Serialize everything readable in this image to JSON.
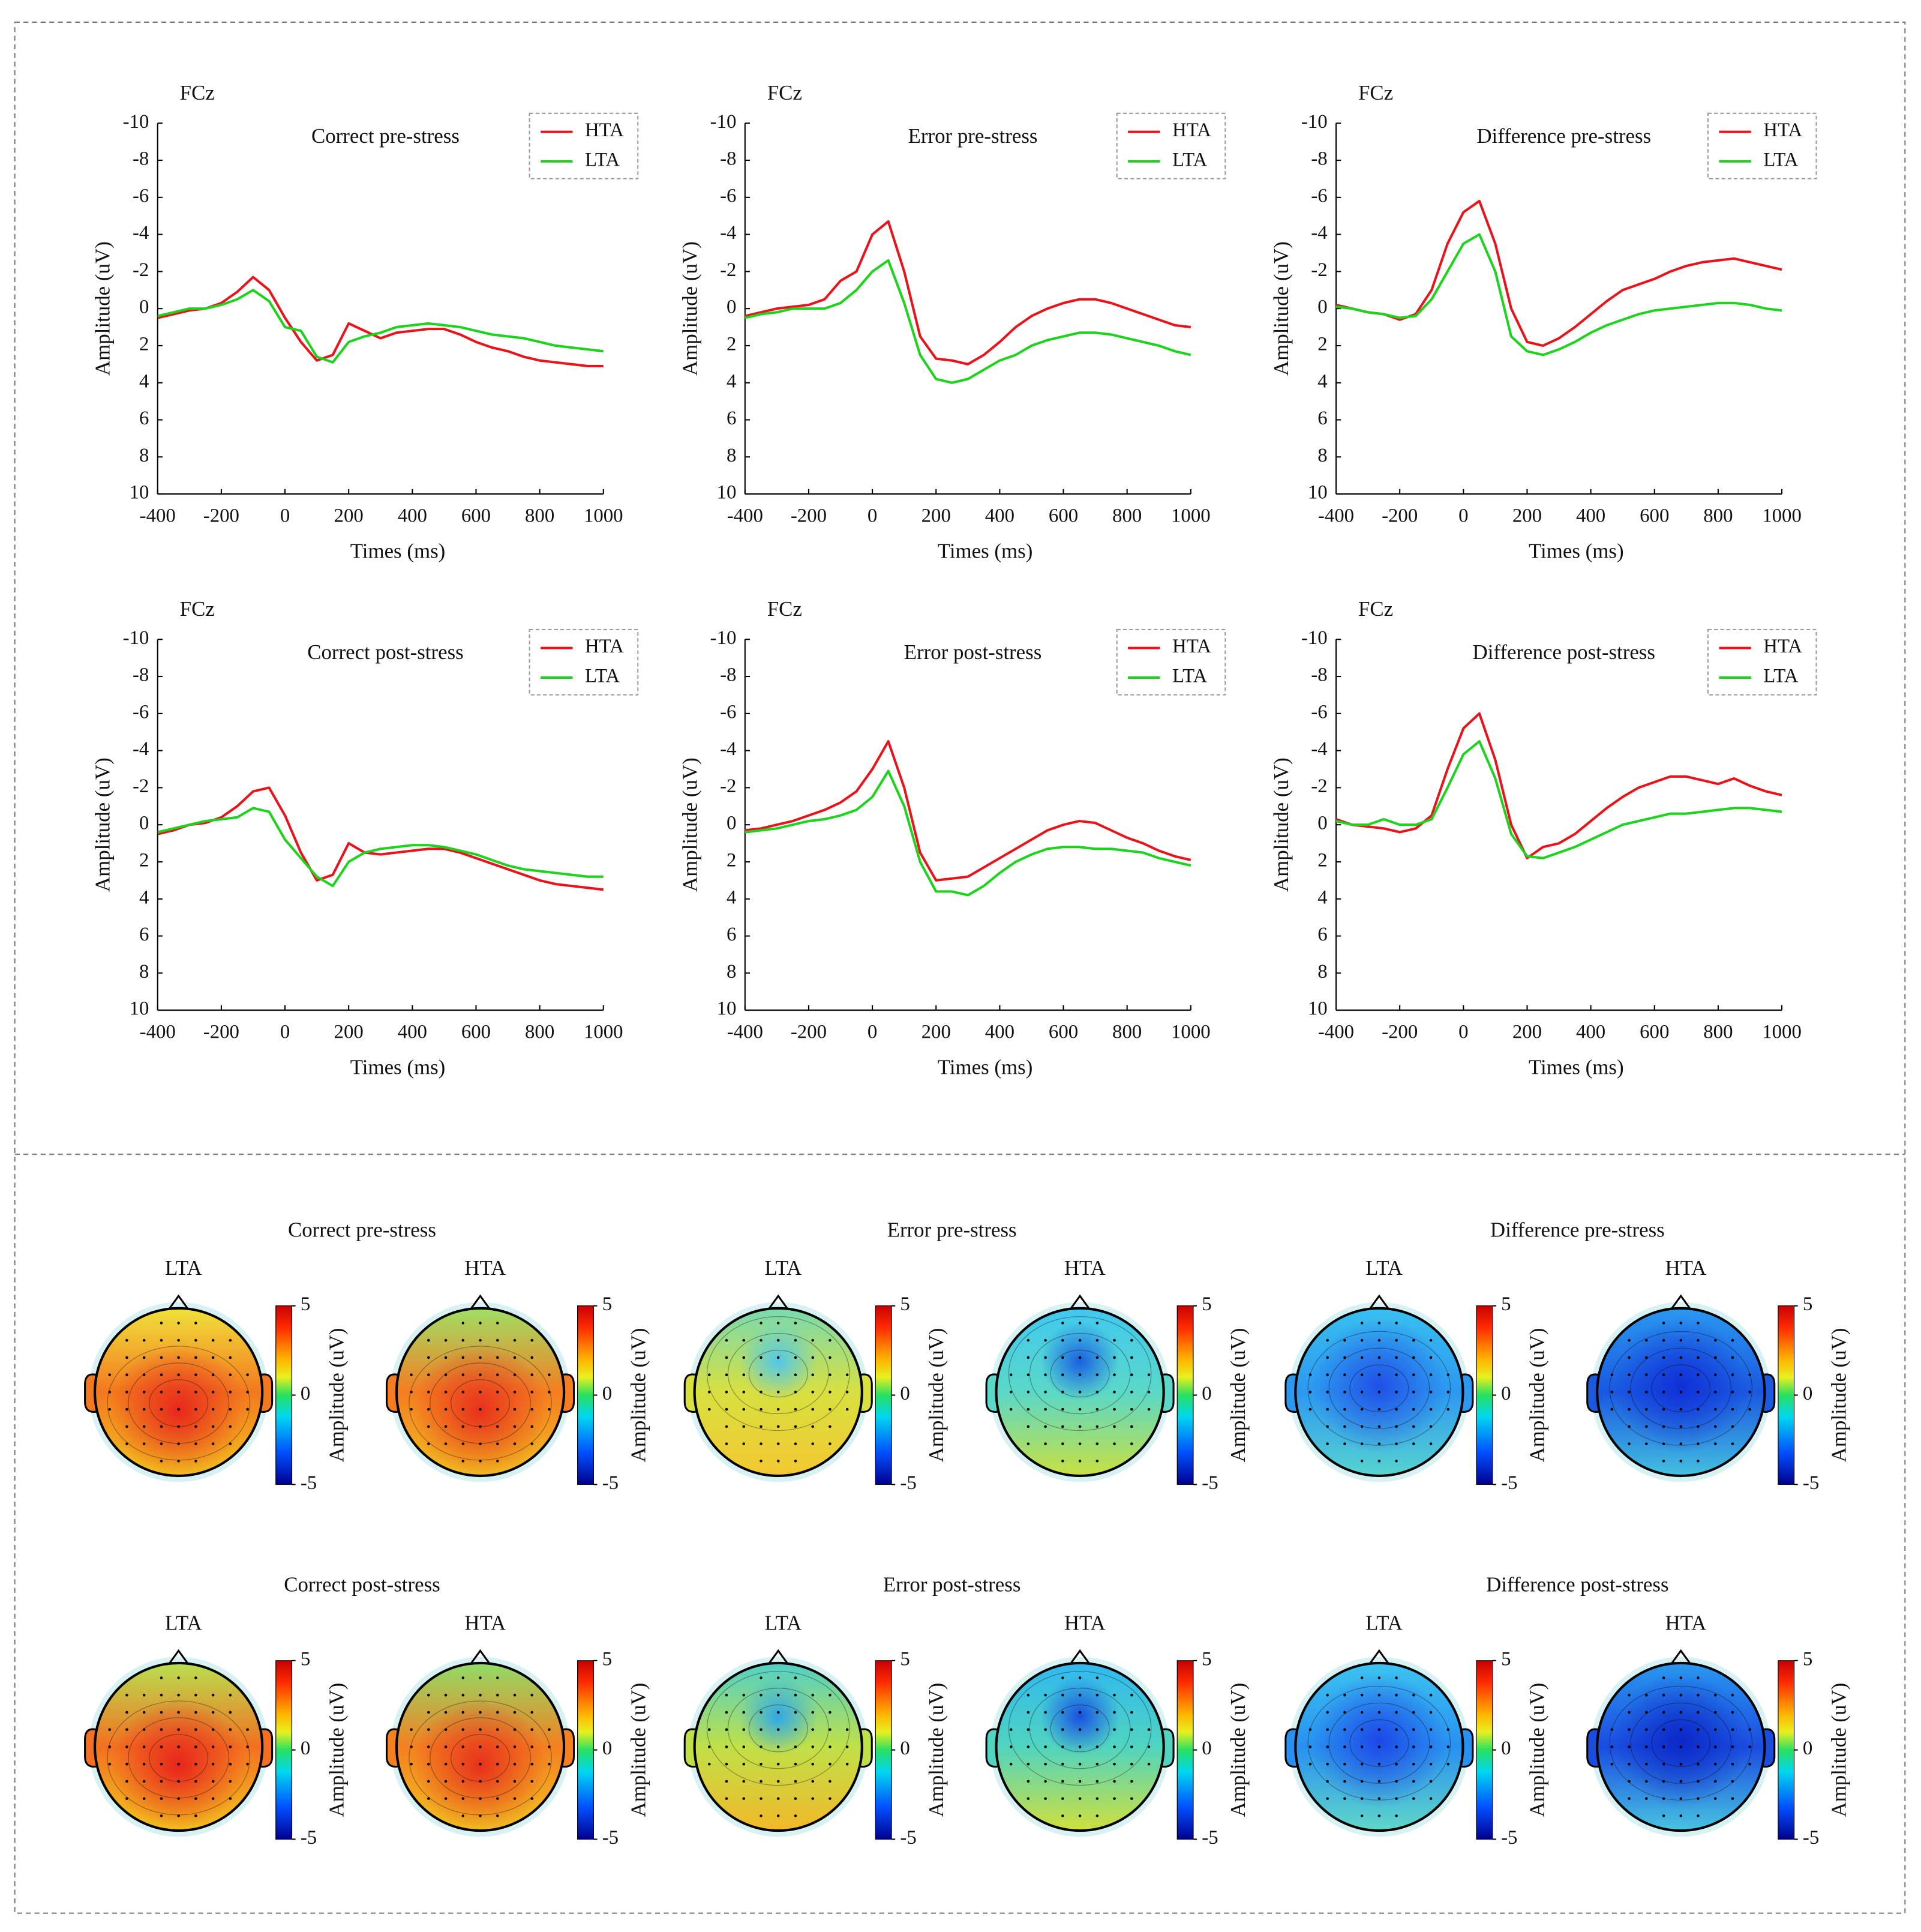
{
  "chart_data": [
    {
      "type": "line",
      "channel": "FCz",
      "title": "Correct pre-stress",
      "x_label": "Times (ms)",
      "y_label": "Amplitude (uV)",
      "xlim": [
        -400,
        1000
      ],
      "xticks": [
        -400,
        -200,
        0,
        200,
        400,
        600,
        800,
        1000
      ],
      "ylim": [
        -10,
        10
      ],
      "yticks": [
        -10,
        -8,
        -6,
        -4,
        -2,
        0,
        2,
        4,
        6,
        8,
        10
      ],
      "y_inverted": true,
      "legend": "upper right",
      "x": [
        -400,
        -350,
        -300,
        -250,
        -200,
        -150,
        -100,
        -50,
        0,
        50,
        100,
        150,
        200,
        250,
        300,
        350,
        400,
        450,
        500,
        550,
        600,
        650,
        700,
        750,
        800,
        850,
        900,
        950,
        1000
      ],
      "series": [
        {
          "name": "HTA",
          "color": "#e8141c",
          "values": [
            0.5,
            0.3,
            0.1,
            0,
            -0.3,
            -0.9,
            -1.7,
            -1.0,
            0.5,
            1.8,
            2.8,
            2.5,
            0.8,
            1.2,
            1.6,
            1.3,
            1.2,
            1.1,
            1.1,
            1.4,
            1.8,
            2.1,
            2.3,
            2.6,
            2.8,
            2.9,
            3.0,
            3.1,
            3.1
          ]
        },
        {
          "name": "LTA",
          "color": "#1ed21e",
          "values": [
            0.4,
            0.2,
            0,
            0,
            -0.2,
            -0.5,
            -1.0,
            -0.4,
            1.0,
            1.2,
            2.6,
            2.9,
            1.8,
            1.5,
            1.3,
            1.0,
            0.9,
            0.8,
            0.9,
            1.0,
            1.2,
            1.4,
            1.5,
            1.6,
            1.8,
            2.0,
            2.1,
            2.2,
            2.3
          ]
        }
      ]
    },
    {
      "type": "line",
      "channel": "FCz",
      "title": "Error pre-stress",
      "x_label": "Times (ms)",
      "y_label": "Amplitude (uV)",
      "xlim": [
        -400,
        1000
      ],
      "xticks": [
        -400,
        -200,
        0,
        200,
        400,
        600,
        800,
        1000
      ],
      "ylim": [
        -10,
        10
      ],
      "yticks": [
        -10,
        -8,
        -6,
        -4,
        -2,
        0,
        2,
        4,
        6,
        8,
        10
      ],
      "y_inverted": true,
      "legend": "upper right",
      "x": [
        -400,
        -350,
        -300,
        -250,
        -200,
        -150,
        -100,
        -50,
        0,
        50,
        100,
        150,
        200,
        250,
        300,
        350,
        400,
        450,
        500,
        550,
        600,
        650,
        700,
        750,
        800,
        850,
        900,
        950,
        1000
      ],
      "series": [
        {
          "name": "HTA",
          "color": "#e8141c",
          "values": [
            0.4,
            0.2,
            0,
            -0.1,
            -0.2,
            -0.5,
            -1.5,
            -2.0,
            -4.0,
            -4.7,
            -2.0,
            1.5,
            2.7,
            2.8,
            3.0,
            2.5,
            1.8,
            1.0,
            0.4,
            0,
            -0.3,
            -0.5,
            -0.5,
            -0.3,
            0,
            0.3,
            0.6,
            0.9,
            1.0
          ]
        },
        {
          "name": "LTA",
          "color": "#1ed21e",
          "values": [
            0.5,
            0.3,
            0.2,
            0,
            0,
            0,
            -0.3,
            -1.0,
            -2.0,
            -2.6,
            -0.3,
            2.5,
            3.8,
            4.0,
            3.8,
            3.3,
            2.8,
            2.5,
            2.0,
            1.7,
            1.5,
            1.3,
            1.3,
            1.4,
            1.6,
            1.8,
            2.0,
            2.3,
            2.5
          ]
        }
      ]
    },
    {
      "type": "line",
      "channel": "FCz",
      "title": "Difference pre-stress",
      "x_label": "Times (ms)",
      "y_label": "Amplitude (uV)",
      "xlim": [
        -400,
        1000
      ],
      "xticks": [
        -400,
        -200,
        0,
        200,
        400,
        600,
        800,
        1000
      ],
      "ylim": [
        -10,
        10
      ],
      "yticks": [
        -10,
        -8,
        -6,
        -4,
        -2,
        0,
        2,
        4,
        6,
        8,
        10
      ],
      "y_inverted": true,
      "legend": "upper right",
      "x": [
        -400,
        -350,
        -300,
        -250,
        -200,
        -150,
        -100,
        -50,
        0,
        50,
        100,
        150,
        200,
        250,
        300,
        350,
        400,
        450,
        500,
        550,
        600,
        650,
        700,
        750,
        800,
        850,
        900,
        950,
        1000
      ],
      "series": [
        {
          "name": "HTA",
          "color": "#e8141c",
          "values": [
            -0.2,
            0,
            0.2,
            0.3,
            0.6,
            0.3,
            -1.0,
            -3.5,
            -5.2,
            -5.8,
            -3.5,
            0,
            1.8,
            2.0,
            1.6,
            1.0,
            0.3,
            -0.4,
            -1.0,
            -1.3,
            -1.6,
            -2.0,
            -2.3,
            -2.5,
            -2.6,
            -2.7,
            -2.5,
            -2.3,
            -2.1
          ]
        },
        {
          "name": "LTA",
          "color": "#1ed21e",
          "values": [
            -0.1,
            0,
            0.2,
            0.3,
            0.5,
            0.4,
            -0.5,
            -2.0,
            -3.5,
            -4.0,
            -2.0,
            1.5,
            2.3,
            2.5,
            2.2,
            1.8,
            1.3,
            0.9,
            0.6,
            0.3,
            0.1,
            0,
            -0.1,
            -0.2,
            -0.3,
            -0.3,
            -0.2,
            0,
            0.1
          ]
        }
      ]
    },
    {
      "type": "line",
      "channel": "FCz",
      "title": "Correct post-stress",
      "x_label": "Times (ms)",
      "y_label": "Amplitude (uV)",
      "xlim": [
        -400,
        1000
      ],
      "xticks": [
        -400,
        -200,
        0,
        200,
        400,
        600,
        800,
        1000
      ],
      "ylim": [
        -10,
        10
      ],
      "yticks": [
        -10,
        -8,
        -6,
        -4,
        -2,
        0,
        2,
        4,
        6,
        8,
        10
      ],
      "y_inverted": true,
      "legend": "upper right",
      "x": [
        -400,
        -350,
        -300,
        -250,
        -200,
        -150,
        -100,
        -50,
        0,
        50,
        100,
        150,
        200,
        250,
        300,
        350,
        400,
        450,
        500,
        550,
        600,
        650,
        700,
        750,
        800,
        850,
        900,
        950,
        1000
      ],
      "series": [
        {
          "name": "HTA",
          "color": "#e8141c",
          "values": [
            0.5,
            0.3,
            0,
            -0.1,
            -0.4,
            -1.0,
            -1.8,
            -2.0,
            -0.5,
            1.5,
            3.0,
            2.7,
            1.0,
            1.5,
            1.6,
            1.5,
            1.4,
            1.3,
            1.3,
            1.5,
            1.8,
            2.1,
            2.4,
            2.7,
            3.0,
            3.2,
            3.3,
            3.4,
            3.5
          ]
        },
        {
          "name": "LTA",
          "color": "#1ed21e",
          "values": [
            0.4,
            0.2,
            0,
            -0.2,
            -0.3,
            -0.4,
            -0.9,
            -0.7,
            0.8,
            1.8,
            2.8,
            3.3,
            2.0,
            1.5,
            1.3,
            1.2,
            1.1,
            1.1,
            1.2,
            1.4,
            1.6,
            1.9,
            2.2,
            2.4,
            2.5,
            2.6,
            2.7,
            2.8,
            2.8
          ]
        }
      ]
    },
    {
      "type": "line",
      "channel": "FCz",
      "title": "Error post-stress",
      "x_label": "Times (ms)",
      "y_label": "Amplitude (uV)",
      "xlim": [
        -400,
        1000
      ],
      "xticks": [
        -400,
        -200,
        0,
        200,
        400,
        600,
        800,
        1000
      ],
      "ylim": [
        -10,
        10
      ],
      "yticks": [
        -10,
        -8,
        -6,
        -4,
        -2,
        0,
        2,
        4,
        6,
        8,
        10
      ],
      "y_inverted": true,
      "legend": "upper right",
      "x": [
        -400,
        -350,
        -300,
        -250,
        -200,
        -150,
        -100,
        -50,
        0,
        50,
        100,
        150,
        200,
        250,
        300,
        350,
        400,
        450,
        500,
        550,
        600,
        650,
        700,
        750,
        800,
        850,
        900,
        950,
        1000
      ],
      "series": [
        {
          "name": "HTA",
          "color": "#e8141c",
          "values": [
            0.3,
            0.2,
            0,
            -0.2,
            -0.5,
            -0.8,
            -1.2,
            -1.8,
            -3.0,
            -4.5,
            -2.0,
            1.5,
            3.0,
            2.9,
            2.8,
            2.3,
            1.8,
            1.3,
            0.8,
            0.3,
            0,
            -0.2,
            -0.1,
            0.3,
            0.7,
            1.0,
            1.4,
            1.7,
            1.9
          ]
        },
        {
          "name": "LTA",
          "color": "#1ed21e",
          "values": [
            0.4,
            0.3,
            0.2,
            0,
            -0.2,
            -0.3,
            -0.5,
            -0.8,
            -1.5,
            -2.9,
            -1.0,
            2.0,
            3.6,
            3.6,
            3.8,
            3.3,
            2.6,
            2.0,
            1.6,
            1.3,
            1.2,
            1.2,
            1.3,
            1.3,
            1.4,
            1.5,
            1.8,
            2.0,
            2.2
          ]
        }
      ]
    },
    {
      "type": "line",
      "channel": "FCz",
      "title": "Difference post-stress",
      "x_label": "Times (ms)",
      "y_label": "Amplitude (uV)",
      "xlim": [
        -400,
        1000
      ],
      "xticks": [
        -400,
        -200,
        0,
        200,
        400,
        600,
        800,
        1000
      ],
      "ylim": [
        -10,
        10
      ],
      "yticks": [
        -10,
        -8,
        -6,
        -4,
        -2,
        0,
        2,
        4,
        6,
        8,
        10
      ],
      "y_inverted": true,
      "legend": "upper right",
      "x": [
        -400,
        -350,
        -300,
        -250,
        -200,
        -150,
        -100,
        -50,
        0,
        50,
        100,
        150,
        200,
        250,
        300,
        350,
        400,
        450,
        500,
        550,
        600,
        650,
        700,
        750,
        800,
        850,
        900,
        950,
        1000
      ],
      "series": [
        {
          "name": "HTA",
          "color": "#e8141c",
          "values": [
            -0.3,
            0,
            0.1,
            0.2,
            0.4,
            0.2,
            -0.5,
            -3.0,
            -5.2,
            -6.0,
            -3.5,
            0,
            1.8,
            1.2,
            1.0,
            0.5,
            -0.2,
            -0.9,
            -1.5,
            -2.0,
            -2.3,
            -2.6,
            -2.6,
            -2.4,
            -2.2,
            -2.5,
            -2.1,
            -1.8,
            -1.6
          ]
        },
        {
          "name": "LTA",
          "color": "#1ed21e",
          "values": [
            -0.2,
            0,
            0,
            -0.3,
            0,
            0,
            -0.3,
            -2.0,
            -3.8,
            -4.5,
            -2.5,
            0.5,
            1.7,
            1.8,
            1.5,
            1.2,
            0.8,
            0.4,
            0,
            -0.2,
            -0.4,
            -0.6,
            -0.6,
            -0.7,
            -0.8,
            -0.9,
            -0.9,
            -0.8,
            -0.7
          ]
        }
      ]
    }
  ],
  "topomaps": {
    "colorbar_label": "Amplitude (uV)",
    "colorbar_lim": [
      -5,
      5
    ],
    "colorbar_ticks": [
      5,
      0,
      -5
    ],
    "panels": [
      {
        "title": "Correct pre-stress",
        "maps": [
          {
            "label": "LTA",
            "colors": [
              "#f0e23a",
              "#f3781e",
              "#f2c41e",
              "#e8261c"
            ]
          },
          {
            "label": "HTA",
            "colors": [
              "#9ee065",
              "#f57d20",
              "#f0c020",
              "#e8301c"
            ]
          }
        ]
      },
      {
        "title": "Error pre-stress",
        "maps": [
          {
            "label": "LTA",
            "colors": [
              "#78dab0",
              "#d8e040",
              "#f3c830",
              "#52c8e8"
            ]
          },
          {
            "label": "HTA",
            "colors": [
              "#40c8f0",
              "#5ad8c8",
              "#c8e040",
              "#1a60e0"
            ]
          }
        ]
      },
      {
        "title": "Difference pre-stress",
        "maps": [
          {
            "label": "LTA",
            "colors": [
              "#38c0f0",
              "#2c98f0",
              "#58d4d0",
              "#2050e8"
            ]
          },
          {
            "label": "HTA",
            "colors": [
              "#2a98f0",
              "#1a58e0",
              "#44c0e0",
              "#1030d8"
            ]
          }
        ]
      },
      {
        "title": "Correct post-stress",
        "maps": [
          {
            "label": "LTA",
            "colors": [
              "#b8e050",
              "#f37020",
              "#f2c81e",
              "#e8241c"
            ]
          },
          {
            "label": "HTA",
            "colors": [
              "#90dc68",
              "#f48020",
              "#f0c420",
              "#e8301c"
            ]
          }
        ]
      },
      {
        "title": "Error post-stress",
        "maps": [
          {
            "label": "LTA",
            "colors": [
              "#50d0c8",
              "#c0e048",
              "#f2b828",
              "#30a8e8"
            ]
          },
          {
            "label": "HTA",
            "colors": [
              "#30b8f0",
              "#50d4c0",
              "#d0e03c",
              "#1a50e0"
            ]
          }
        ]
      },
      {
        "title": "Difference post-stress",
        "maps": [
          {
            "label": "LTA",
            "colors": [
              "#3cc4f0",
              "#2890f0",
              "#60d8c8",
              "#1c48e8"
            ]
          },
          {
            "label": "HTA",
            "colors": [
              "#2a98f0",
              "#1a4ce0",
              "#48c4e0",
              "#0c28c8"
            ]
          }
        ]
      }
    ]
  }
}
